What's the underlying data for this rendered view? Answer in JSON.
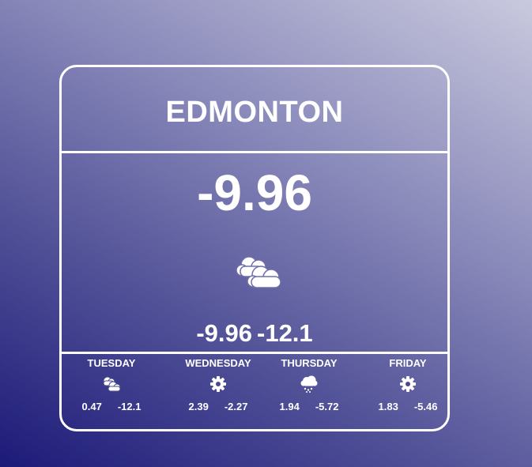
{
  "city": "EDMONTON",
  "current": {
    "temp": "-9.96",
    "icon": "clouds-icon",
    "temp_max": "-9.96",
    "temp_min": "-12.1"
  },
  "forecast": [
    {
      "day": "TUESDAY",
      "icon": "clouds-icon",
      "max": "0.47",
      "min": "-12.1"
    },
    {
      "day": "WEDNESDAY",
      "icon": "gear-icon",
      "max": "2.39",
      "min": "-2.27"
    },
    {
      "day": "THURSDAY",
      "icon": "cloud-snow-icon",
      "max": "1.94",
      "min": "-5.72"
    },
    {
      "day": "FRIDAY",
      "icon": "gear-icon",
      "max": "1.83",
      "min": "-5.46"
    }
  ]
}
